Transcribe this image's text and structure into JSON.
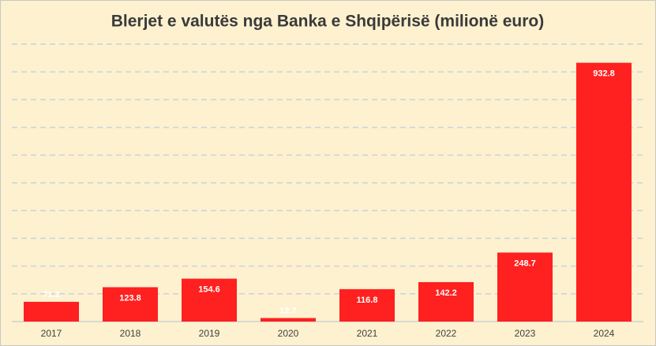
{
  "chart_data": {
    "type": "bar",
    "title": "Blerjet e valutës nga Banka e Shqipërisë (milionë euro)",
    "categories": [
      "2017",
      "2018",
      "2019",
      "2020",
      "2021",
      "2022",
      "2023",
      "2024"
    ],
    "values": [
      71.2,
      123.8,
      154.6,
      12.7,
      116.8,
      142.2,
      248.7,
      932.8
    ],
    "color": "#ff2020",
    "ylim": [
      0,
      1000
    ],
    "yticks": [
      0,
      100,
      200,
      300,
      400,
      500,
      600,
      700,
      800,
      900,
      1000
    ],
    "grid": true
  }
}
